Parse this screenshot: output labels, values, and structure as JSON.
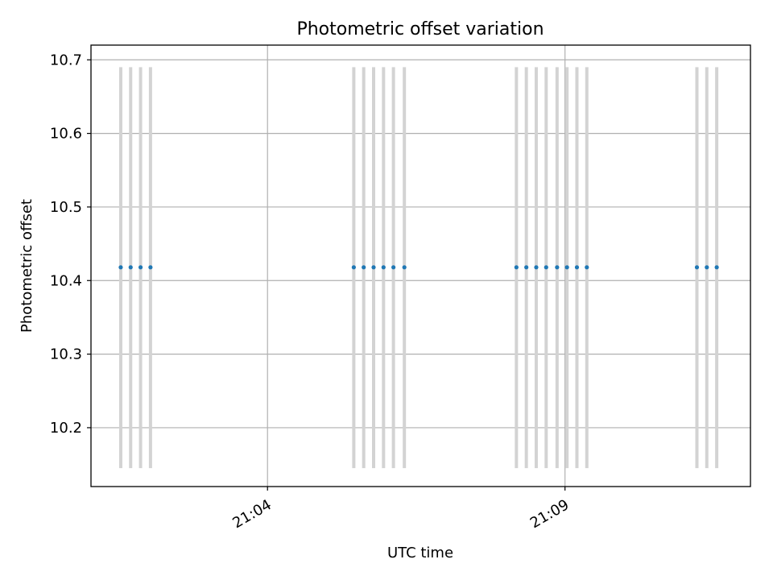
{
  "chart_data": {
    "type": "scatter",
    "title": "Photometric offset variation",
    "xlabel": "UTC time",
    "ylabel": "Photometric offset",
    "xlim": [
      "21:01:02",
      "21:12:07"
    ],
    "ylim": [
      10.12,
      10.72
    ],
    "x_ticks": [
      "21:04",
      "21:09"
    ],
    "y_ticks": [
      10.2,
      10.3,
      10.4,
      10.5,
      10.6,
      10.7
    ],
    "grid": true,
    "series": [
      {
        "marker_color": "#1f77b4",
        "errorbar_color": "#d3d3d3",
        "points": [
          {
            "x": "21:01:32",
            "y": 10.418,
            "ylow": 10.145,
            "yhigh": 10.69
          },
          {
            "x": "21:01:42",
            "y": 10.418,
            "ylow": 10.145,
            "yhigh": 10.69
          },
          {
            "x": "21:01:52",
            "y": 10.418,
            "ylow": 10.145,
            "yhigh": 10.69
          },
          {
            "x": "21:02:02",
            "y": 10.418,
            "ylow": 10.145,
            "yhigh": 10.69
          },
          {
            "x": "21:05:27",
            "y": 10.418,
            "ylow": 10.145,
            "yhigh": 10.69
          },
          {
            "x": "21:05:37",
            "y": 10.418,
            "ylow": 10.145,
            "yhigh": 10.69
          },
          {
            "x": "21:05:47",
            "y": 10.418,
            "ylow": 10.145,
            "yhigh": 10.69
          },
          {
            "x": "21:05:57",
            "y": 10.418,
            "ylow": 10.145,
            "yhigh": 10.69
          },
          {
            "x": "21:06:07",
            "y": 10.418,
            "ylow": 10.145,
            "yhigh": 10.69
          },
          {
            "x": "21:06:18",
            "y": 10.418,
            "ylow": 10.145,
            "yhigh": 10.69
          },
          {
            "x": "21:08:11",
            "y": 10.418,
            "ylow": 10.145,
            "yhigh": 10.69
          },
          {
            "x": "21:08:21",
            "y": 10.418,
            "ylow": 10.145,
            "yhigh": 10.69
          },
          {
            "x": "21:08:31",
            "y": 10.418,
            "ylow": 10.145,
            "yhigh": 10.69
          },
          {
            "x": "21:08:41",
            "y": 10.418,
            "ylow": 10.145,
            "yhigh": 10.69
          },
          {
            "x": "21:08:52",
            "y": 10.418,
            "ylow": 10.145,
            "yhigh": 10.69
          },
          {
            "x": "21:09:02",
            "y": 10.418,
            "ylow": 10.145,
            "yhigh": 10.69
          },
          {
            "x": "21:09:12",
            "y": 10.418,
            "ylow": 10.145,
            "yhigh": 10.69
          },
          {
            "x": "21:09:22",
            "y": 10.418,
            "ylow": 10.145,
            "yhigh": 10.69
          },
          {
            "x": "21:11:13",
            "y": 10.418,
            "ylow": 10.145,
            "yhigh": 10.69
          },
          {
            "x": "21:11:23",
            "y": 10.418,
            "ylow": 10.145,
            "yhigh": 10.69
          },
          {
            "x": "21:11:33",
            "y": 10.418,
            "ylow": 10.145,
            "yhigh": 10.69
          }
        ]
      }
    ]
  }
}
